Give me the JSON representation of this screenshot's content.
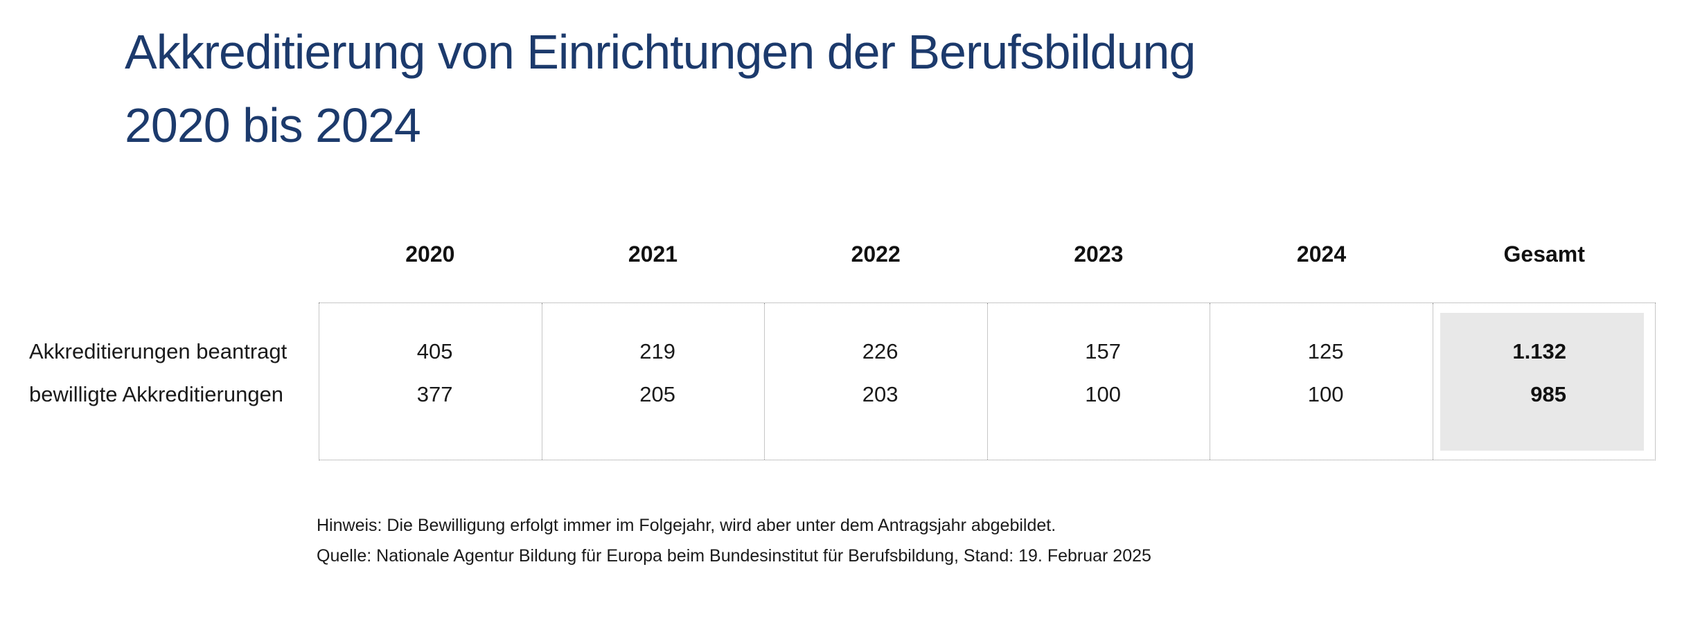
{
  "title": {
    "line1": "Akkreditierung von Einrichtungen der Berufsbildung",
    "line2": "2020 bis 2024"
  },
  "table": {
    "column_headers": [
      "2020",
      "2021",
      "2022",
      "2023",
      "2024",
      "Gesamt"
    ],
    "rows": [
      {
        "label": "Akkreditierungen beantragt",
        "values": [
          "405",
          "219",
          "226",
          "157",
          "125"
        ],
        "total": "1.132"
      },
      {
        "label": "bewilligte Akkreditierungen",
        "values": [
          "377",
          "205",
          "203",
          "100",
          "100"
        ],
        "total": "985"
      }
    ]
  },
  "notes": {
    "hinweis": "Hinweis: Die Bewilligung erfolgt immer im Folgejahr, wird aber unter dem Antragsjahr abgebildet.",
    "quelle": "Quelle: Nationale Agentur Bildung für Europa beim Bundesinstitut für Berufsbildung, Stand: 19. Februar 2025"
  },
  "colors": {
    "title_text": "#1c3a6c",
    "body_text": "#1a1a1a",
    "total_background": "#e8e8e8",
    "dotted_border": "#8f8f8f"
  },
  "chart_data": {
    "type": "table",
    "title": "Akkreditierung von Einrichtungen der Berufsbildung 2020 bis 2024",
    "categories": [
      "2020",
      "2021",
      "2022",
      "2023",
      "2024",
      "Gesamt"
    ],
    "series": [
      {
        "name": "Akkreditierungen beantragt",
        "values": [
          405,
          219,
          226,
          157,
          125,
          1132
        ]
      },
      {
        "name": "bewilligte Akkreditierungen",
        "values": [
          377,
          205,
          203,
          100,
          100,
          985
        ]
      }
    ],
    "annotations": [
      "Hinweis: Die Bewilligung erfolgt immer im Folgejahr, wird aber unter dem Antragsjahr abgebildet.",
      "Quelle: Nationale Agentur Bildung für Europa beim Bundesinstitut für Berufsbildung, Stand: 19. Februar 2025"
    ]
  }
}
